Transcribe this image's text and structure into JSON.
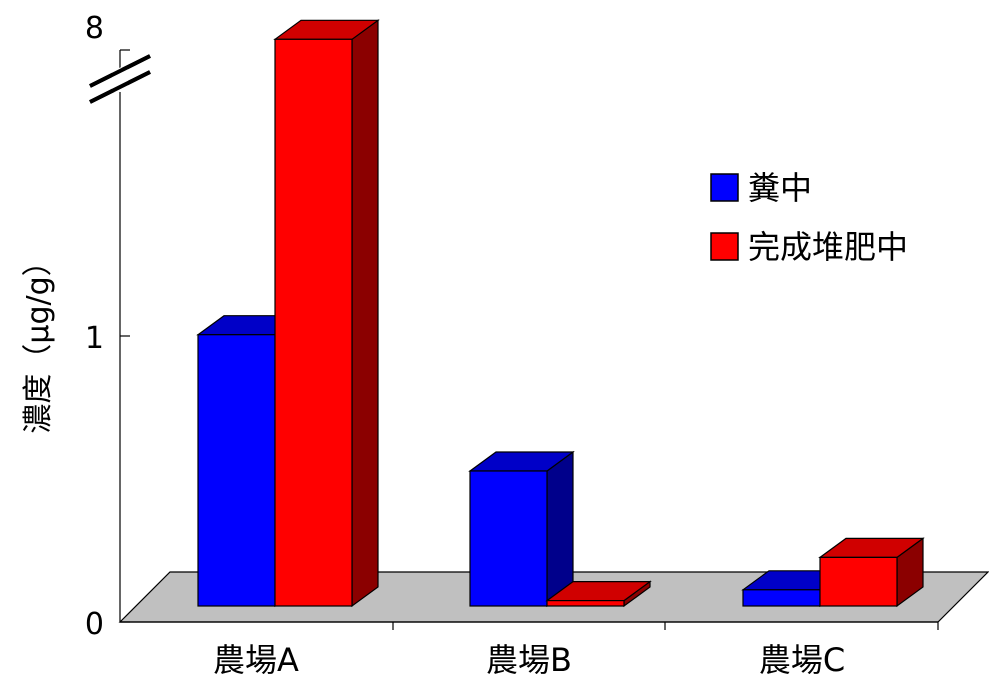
{
  "chart_data": {
    "type": "bar",
    "style": "3d-clustered",
    "ylabel": "濃度（µg/g）",
    "y_ticks": [
      "0",
      "1",
      "8"
    ],
    "y_axis_break": true,
    "ylim": [
      0,
      8
    ],
    "categories": [
      "農場A",
      "農場B",
      "農場C"
    ],
    "series": [
      {
        "name": "糞中",
        "values": [
          1.03,
          0.5,
          0.06
        ],
        "color": "#0000ff"
      },
      {
        "name": "完成堆肥中",
        "values": [
          7.9,
          0.02,
          0.18
        ],
        "color": "#ff0000"
      }
    ],
    "legend_position": "right",
    "grid": false
  }
}
